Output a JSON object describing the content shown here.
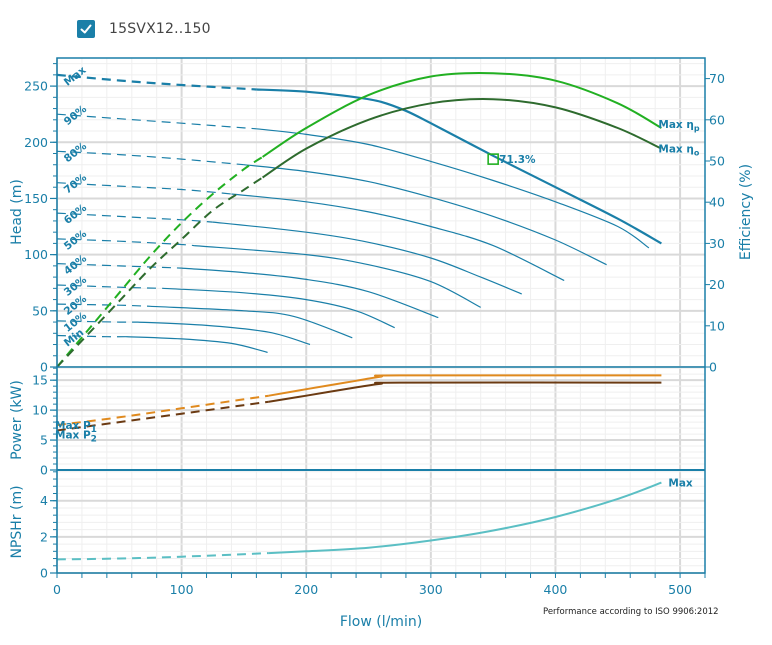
{
  "header": {
    "checkbox_checked": true,
    "series_name": "15SVX12..150"
  },
  "colors": {
    "axis": "#1a7fa8",
    "head": "#1a7fa8",
    "eff_pump": "#22b022",
    "eff_overall": "#2e6b2e",
    "p1": "#e08a1e",
    "p2": "#6b3a12",
    "npsh": "#5bbfc4",
    "grid_major": "#d9d9d9",
    "grid_minor": "#efefef"
  },
  "chart_data": {
    "type": "line",
    "x_axis": {
      "label": "Flow (l/min)",
      "ticks": [
        0,
        100,
        200,
        300,
        400,
        500
      ],
      "range": [
        0,
        520
      ]
    },
    "footnote": "Performance according to ISO 9906:2012",
    "panels": [
      {
        "name": "head",
        "ylabel": "Head (m)",
        "y_ticks": [
          0,
          50,
          100,
          150,
          200,
          250
        ],
        "ylim": [
          0,
          275
        ],
        "y2label": "Efficiency (%)",
        "y2_ticks": [
          0,
          10,
          20,
          30,
          40,
          50,
          60,
          70
        ],
        "y2lim": [
          0,
          75
        ],
        "head_curves": [
          {
            "label": "Max",
            "dash_until": 160,
            "points": [
              [
                0,
                260
              ],
              [
                50,
                255
              ],
              [
                100,
                251
              ],
              [
                160,
                247
              ],
              [
                200,
                245
              ],
              [
                240,
                240
              ],
              [
                260,
                236
              ],
              [
                280,
                228
              ],
              [
                300,
                217
              ],
              [
                350,
                188
              ],
              [
                400,
                160
              ],
              [
                450,
                132
              ],
              [
                485,
                110
              ]
            ]
          },
          {
            "label": "90%",
            "dash_until": 160,
            "points": [
              [
                0,
                225
              ],
              [
                50,
                221
              ],
              [
                100,
                217
              ],
              [
                160,
                212
              ],
              [
                200,
                207
              ],
              [
                250,
                198
              ],
              [
                300,
                183
              ],
              [
                350,
                166
              ],
              [
                400,
                147
              ],
              [
                450,
                125
              ],
              [
                475,
                106
              ]
            ]
          },
          {
            "label": "80%",
            "dash_until": 150,
            "points": [
              [
                0,
                192
              ],
              [
                50,
                189
              ],
              [
                100,
                185
              ],
              [
                150,
                180
              ],
              [
                200,
                174
              ],
              [
                250,
                165
              ],
              [
                300,
                151
              ],
              [
                350,
                134
              ],
              [
                400,
                113
              ],
              [
                441,
                91
              ]
            ]
          },
          {
            "label": "70%",
            "dash_until": 140,
            "points": [
              [
                0,
                164
              ],
              [
                50,
                161
              ],
              [
                100,
                158
              ],
              [
                140,
                154
              ],
              [
                200,
                147
              ],
              [
                250,
                138
              ],
              [
                300,
                125
              ],
              [
                350,
                108
              ],
              [
                407,
                77
              ]
            ]
          },
          {
            "label": "60%",
            "dash_until": 125,
            "points": [
              [
                0,
                137
              ],
              [
                50,
                134
              ],
              [
                100,
                131
              ],
              [
                125,
                129
              ],
              [
                200,
                120
              ],
              [
                250,
                111
              ],
              [
                300,
                97
              ],
              [
                340,
                80
              ],
              [
                373,
                65
              ]
            ]
          },
          {
            "label": "50%",
            "dash_until": 110,
            "points": [
              [
                0,
                114
              ],
              [
                50,
                112
              ],
              [
                100,
                109
              ],
              [
                110,
                108
              ],
              [
                200,
                100
              ],
              [
                250,
                91
              ],
              [
                300,
                76
              ],
              [
                340,
                53
              ]
            ]
          },
          {
            "label": "40%",
            "dash_until": 100,
            "points": [
              [
                0,
                92
              ],
              [
                50,
                90
              ],
              [
                100,
                88
              ],
              [
                150,
                84
              ],
              [
                200,
                78
              ],
              [
                250,
                67
              ],
              [
                306,
                44
              ]
            ]
          },
          {
            "label": "30%",
            "dash_until": 85,
            "points": [
              [
                0,
                73
              ],
              [
                50,
                71
              ],
              [
                85,
                70
              ],
              [
                150,
                66
              ],
              [
                200,
                60
              ],
              [
                240,
                50
              ],
              [
                271,
                35
              ]
            ]
          },
          {
            "label": "20%",
            "dash_until": 75,
            "points": [
              [
                0,
                56
              ],
              [
                50,
                55
              ],
              [
                75,
                54
              ],
              [
                150,
                50
              ],
              [
                190,
                45
              ],
              [
                237,
                26
              ]
            ]
          },
          {
            "label": "10%",
            "dash_until": 65,
            "points": [
              [
                0,
                41
              ],
              [
                50,
                40
              ],
              [
                65,
                40
              ],
              [
                120,
                37
              ],
              [
                170,
                31
              ],
              [
                203,
                20
              ]
            ]
          },
          {
            "label": "Min",
            "dash_until": 55,
            "points": [
              [
                0,
                28
              ],
              [
                40,
                27
              ],
              [
                55,
                27
              ],
              [
                100,
                25
              ],
              [
                140,
                21
              ],
              [
                169,
                13
              ]
            ]
          }
        ],
        "efficiency_curves": [
          {
            "label": "Max ηp",
            "dash_until": 165,
            "points": [
              [
                0,
                0
              ],
              [
                25,
                9
              ],
              [
                50,
                18
              ],
              [
                75,
                27
              ],
              [
                100,
                35
              ],
              [
                125,
                42
              ],
              [
                150,
                48
              ],
              [
                165,
                51
              ],
              [
                200,
                58
              ],
              [
                250,
                66
              ],
              [
                300,
                70.5
              ],
              [
                350,
                71.3
              ],
              [
                400,
                69.5
              ],
              [
                450,
                64
              ],
              [
                485,
                58
              ]
            ]
          },
          {
            "label": "Max ηo",
            "dash_until": 165,
            "points": [
              [
                0,
                0
              ],
              [
                25,
                8
              ],
              [
                50,
                16
              ],
              [
                75,
                24
              ],
              [
                100,
                31
              ],
              [
                125,
                38
              ],
              [
                150,
                43
              ],
              [
                165,
                46
              ],
              [
                200,
                53
              ],
              [
                250,
                60
              ],
              [
                300,
                64
              ],
              [
                350,
                65
              ],
              [
                400,
                63
              ],
              [
                450,
                58
              ],
              [
                485,
                53
              ]
            ]
          }
        ],
        "bep_marker": {
          "flow": 350,
          "head": 185,
          "label": "71.3%"
        }
      },
      {
        "name": "power",
        "ylabel": "Power (kW)",
        "y_ticks": [
          0,
          5,
          10,
          15
        ],
        "ylim": [
          0,
          17.2
        ],
        "series": [
          {
            "label": "Max P1",
            "dash_until": 170,
            "points": [
              [
                0,
                7.5
              ],
              [
                50,
                8.8
              ],
              [
                100,
                10.3
              ],
              [
                170,
                12.4
              ],
              [
                200,
                13.5
              ],
              [
                240,
                14.9
              ],
              [
                260,
                15.6
              ],
              [
                275,
                15.8
              ],
              [
                485,
                15.8
              ]
            ]
          },
          {
            "label": "Max P2",
            "dash_until": 170,
            "points": [
              [
                0,
                6.6
              ],
              [
                50,
                8.0
              ],
              [
                100,
                9.4
              ],
              [
                170,
                11.4
              ],
              [
                200,
                12.4
              ],
              [
                240,
                13.8
              ],
              [
                260,
                14.4
              ],
              [
                275,
                14.6
              ],
              [
                485,
                14.6
              ]
            ]
          }
        ]
      },
      {
        "name": "npsh",
        "ylabel": "NPSHr (m)",
        "y_ticks": [
          0,
          2,
          4
        ],
        "ylim": [
          0,
          5.7
        ],
        "series": [
          {
            "label": "Max",
            "dash_until": 170,
            "points": [
              [
                0,
                0.75
              ],
              [
                50,
                0.8
              ],
              [
                100,
                0.9
              ],
              [
                170,
                1.1
              ],
              [
                200,
                1.2
              ],
              [
                250,
                1.4
              ],
              [
                300,
                1.8
              ],
              [
                350,
                2.35
              ],
              [
                400,
                3.1
              ],
              [
                450,
                4.1
              ],
              [
                485,
                5.0
              ]
            ]
          }
        ]
      }
    ]
  }
}
